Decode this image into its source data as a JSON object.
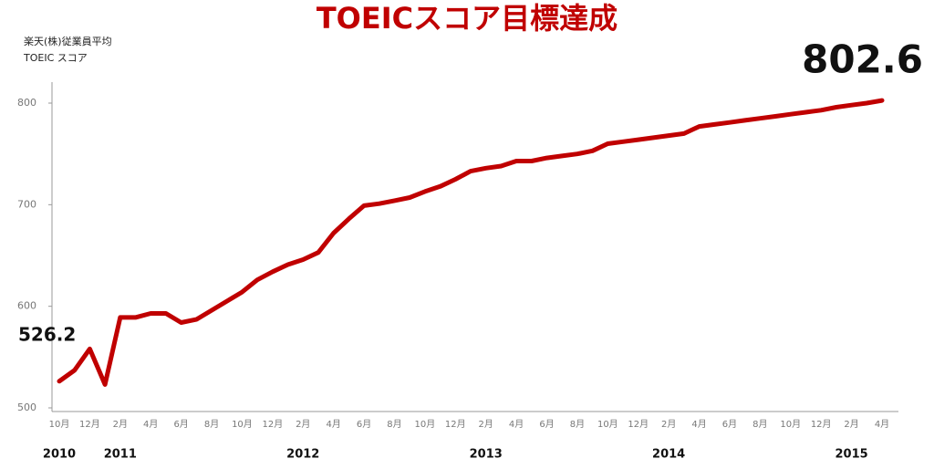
{
  "chart_data": {
    "type": "line",
    "title": "TOEICスコア目標達成",
    "subtitle": [
      "楽天(株)従業員平均",
      "TOEIC スコア"
    ],
    "categories": [
      "10月",
      null,
      "12月",
      null,
      "2月",
      null,
      "4月",
      null,
      "6月",
      null,
      "8月",
      null,
      "10月",
      null,
      "12月",
      null,
      "2月",
      null,
      "4月",
      null,
      "6月",
      null,
      "8月",
      null,
      "10月",
      null,
      "12月",
      null,
      "2月",
      null,
      "4月",
      null,
      "6月",
      null,
      "8月",
      null,
      "10月",
      null,
      "12月",
      null,
      "2月",
      null,
      "4月",
      null,
      "6月",
      null,
      "8月",
      null,
      "10月",
      null,
      "12月",
      null,
      "2月",
      null,
      "4月"
    ],
    "year_labels": [
      "2010",
      "2011",
      "2012",
      "2013",
      "2014",
      "2015"
    ],
    "values": [
      526.2,
      537,
      558,
      523,
      589,
      589,
      593,
      593,
      584,
      587,
      596,
      605,
      614,
      626,
      634,
      641,
      646,
      653,
      672,
      686,
      699,
      701,
      704,
      707,
      713,
      718,
      725,
      733,
      736,
      738,
      743,
      743,
      746,
      748,
      750,
      753,
      760,
      762,
      764,
      766,
      768,
      770,
      777,
      779,
      781,
      783,
      785,
      787,
      789,
      791,
      793,
      796,
      798,
      800,
      802.6
    ],
    "color": "#c00000",
    "ylim": [
      500,
      820
    ],
    "yticks": [
      500,
      600,
      700,
      800
    ],
    "grid": false
  }
}
